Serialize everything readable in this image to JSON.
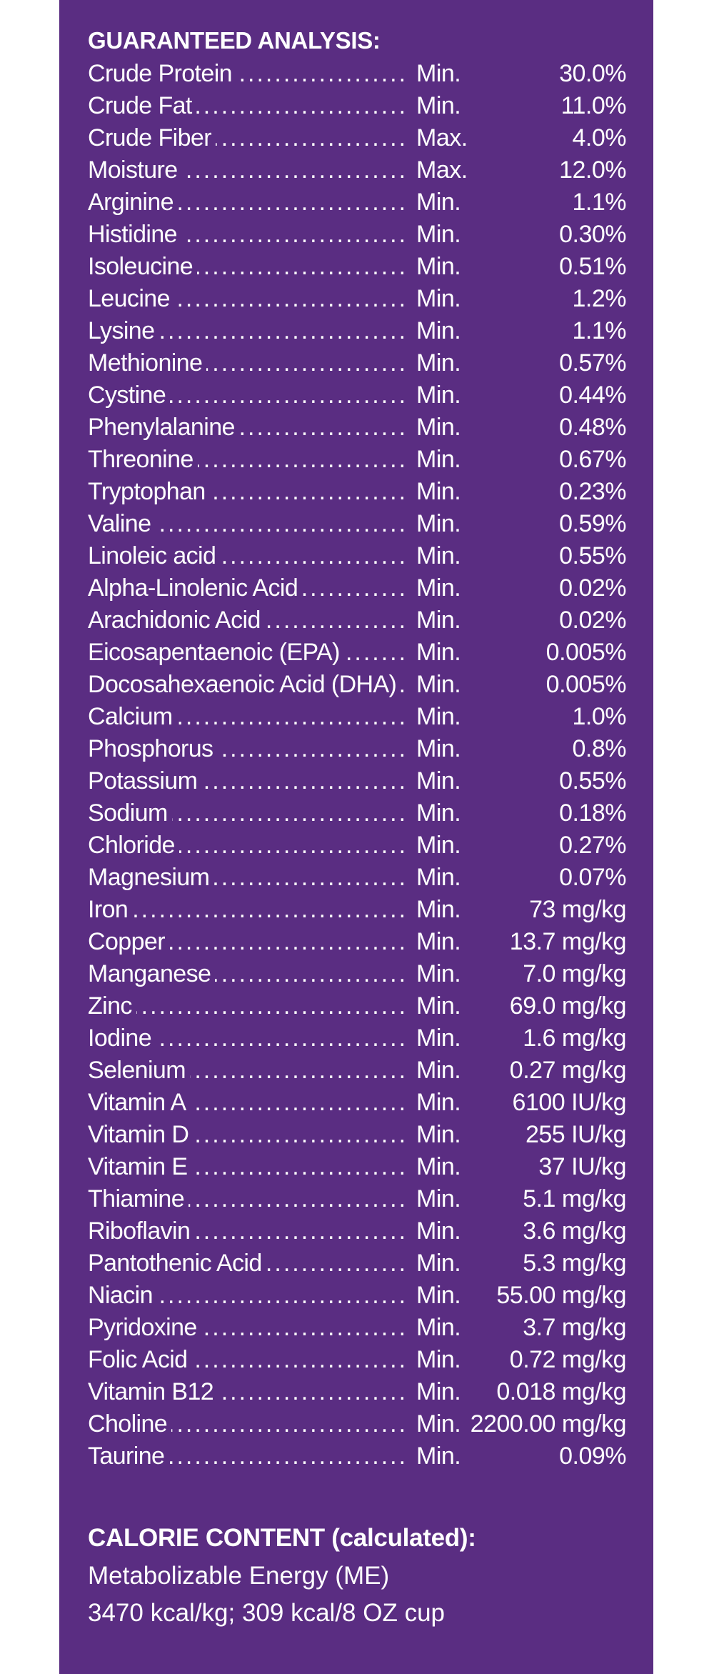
{
  "colors": {
    "panel": "#5a2d82",
    "text": "#ffffff"
  },
  "guaranteed_analysis": {
    "heading": "GUARANTEED ANALYSIS:",
    "rows": [
      {
        "name": "Crude Protein",
        "qualifier": "Min.",
        "value": "30.0%"
      },
      {
        "name": "Crude Fat",
        "qualifier": "Min.",
        "value": "11.0%"
      },
      {
        "name": "Crude Fiber",
        "qualifier": "Max.",
        "value": "4.0%"
      },
      {
        "name": "Moisture",
        "qualifier": "Max.",
        "value": "12.0%"
      },
      {
        "name": "Arginine",
        "qualifier": "Min.",
        "value": "1.1%"
      },
      {
        "name": "Histidine",
        "qualifier": "Min.",
        "value": "0.30%"
      },
      {
        "name": "Isoleucine",
        "qualifier": "Min.",
        "value": "0.51%"
      },
      {
        "name": "Leucine",
        "qualifier": "Min.",
        "value": "1.2%"
      },
      {
        "name": "Lysine",
        "qualifier": "Min.",
        "value": "1.1%"
      },
      {
        "name": "Methionine",
        "qualifier": "Min.",
        "value": "0.57%"
      },
      {
        "name": "Cystine",
        "qualifier": "Min.",
        "value": "0.44%"
      },
      {
        "name": "Phenylalanine",
        "qualifier": "Min.",
        "value": "0.48%"
      },
      {
        "name": "Threonine",
        "qualifier": "Min.",
        "value": "0.67%"
      },
      {
        "name": "Tryptophan",
        "qualifier": "Min.",
        "value": "0.23%"
      },
      {
        "name": "Valine",
        "qualifier": "Min.",
        "value": "0.59%"
      },
      {
        "name": "Linoleic acid",
        "qualifier": "Min.",
        "value": "0.55%"
      },
      {
        "name": "Alpha-Linolenic Acid",
        "qualifier": "Min.",
        "value": "0.02%"
      },
      {
        "name": "Arachidonic Acid",
        "qualifier": "Min.",
        "value": "0.02%"
      },
      {
        "name": "Eicosapentaenoic (EPA)",
        "qualifier": "Min.",
        "value": "0.005%"
      },
      {
        "name": "Docosahexaenoic Acid (DHA)",
        "qualifier": "Min.",
        "value": "0.005%"
      },
      {
        "name": "Calcium",
        "qualifier": "Min.",
        "value": "1.0%"
      },
      {
        "name": "Phosphorus",
        "qualifier": "Min.",
        "value": "0.8%"
      },
      {
        "name": "Potassium",
        "qualifier": "Min.",
        "value": "0.55%"
      },
      {
        "name": "Sodium",
        "qualifier": "Min.",
        "value": "0.18%"
      },
      {
        "name": "Chloride",
        "qualifier": "Min.",
        "value": "0.27%"
      },
      {
        "name": "Magnesium",
        "qualifier": "Min.",
        "value": "0.07%"
      },
      {
        "name": "Iron",
        "qualifier": "Min.",
        "value": "73 mg/kg"
      },
      {
        "name": "Copper",
        "qualifier": "Min.",
        "value": "13.7 mg/kg"
      },
      {
        "name": "Manganese",
        "qualifier": "Min.",
        "value": "7.0 mg/kg"
      },
      {
        "name": "Zinc",
        "qualifier": "Min.",
        "value": "69.0 mg/kg"
      },
      {
        "name": "Iodine",
        "qualifier": "Min.",
        "value": "1.6 mg/kg"
      },
      {
        "name": "Selenium",
        "qualifier": "Min.",
        "value": "0.27 mg/kg"
      },
      {
        "name": "Vitamin A",
        "qualifier": "Min.",
        "value": "6100 IU/kg"
      },
      {
        "name": "Vitamin D",
        "qualifier": "Min.",
        "value": "255 IU/kg"
      },
      {
        "name": "Vitamin E",
        "qualifier": "Min.",
        "value": "37 IU/kg"
      },
      {
        "name": "Thiamine",
        "qualifier": "Min.",
        "value": "5.1 mg/kg"
      },
      {
        "name": "Riboflavin",
        "qualifier": "Min.",
        "value": "3.6 mg/kg"
      },
      {
        "name": "Pantothenic Acid",
        "qualifier": "Min.",
        "value": "5.3 mg/kg"
      },
      {
        "name": "Niacin",
        "qualifier": "Min.",
        "value": "55.00 mg/kg"
      },
      {
        "name": "Pyridoxine",
        "qualifier": "Min.",
        "value": "3.7 mg/kg"
      },
      {
        "name": "Folic Acid",
        "qualifier": "Min.",
        "value": "0.72 mg/kg"
      },
      {
        "name": "Vitamin B12",
        "qualifier": "Min.",
        "value": "0.018 mg/kg"
      },
      {
        "name": "Choline",
        "qualifier": "Min.",
        "value": "2200.00 mg/kg"
      },
      {
        "name": "Taurine",
        "qualifier": "Min.",
        "value": "0.09%"
      }
    ]
  },
  "calorie_content": {
    "title": "CALORIE CONTENT (calculated):",
    "line1": "Metabolizable Energy (ME)",
    "line2": "3470 kcal/kg; 309 kcal/8 OZ cup"
  }
}
